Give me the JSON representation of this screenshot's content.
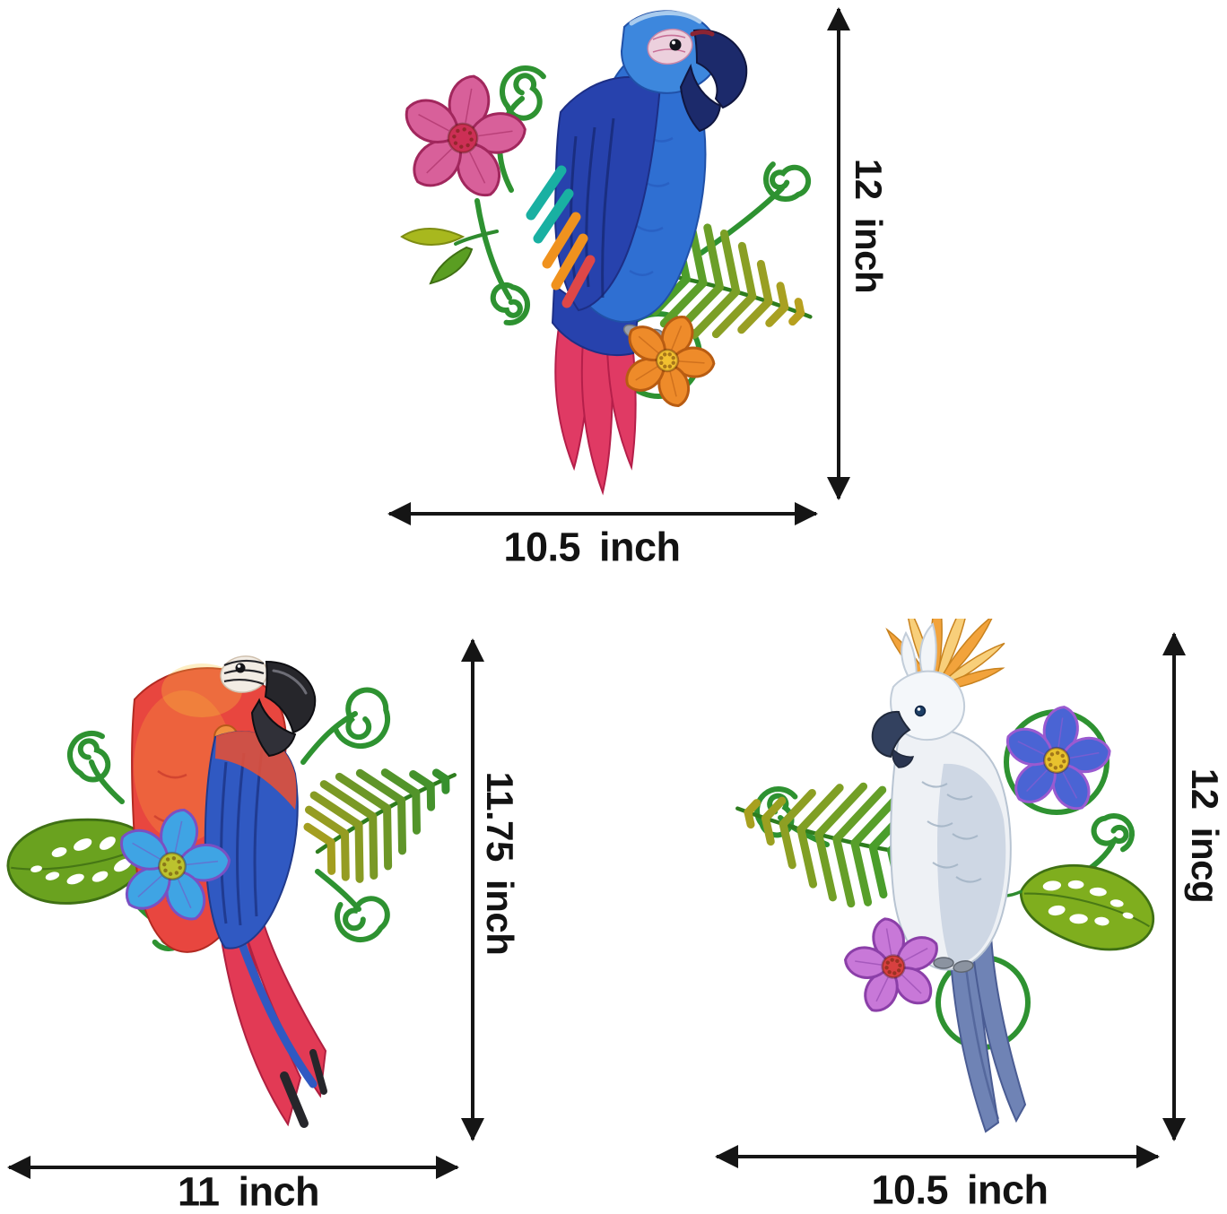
{
  "annotation_color": "#151515",
  "background": "#ffffff",
  "products": [
    {
      "id": "blue-parrot",
      "name": "Blue macaw metal wall art with flowers and fern",
      "height_label": "12 inch",
      "width_label": "10.5 inch",
      "colors": {
        "body": "#2f6fd2",
        "body_dark": "#2742ad",
        "head": "#3d87dd",
        "beak": "#1c2a6b",
        "eye_patch": "#ecd0dd",
        "tail": "#e03a64",
        "accent_teal": "#19b0a2",
        "accent_orange": "#f0921e",
        "accent_red": "#de4748",
        "vine": "#2e9231",
        "fern_base": "#2f9e2f",
        "fern_tip": "#c0a01e",
        "flower_pink": "#d8609a",
        "flower_pink_deep": "#a1275d",
        "flower_pink_center": "#cc2f55",
        "flower_orange": "#ee8b2a",
        "flower_orange_deep": "#b85c12",
        "flower_orange_center": "#f2c030"
      }
    },
    {
      "id": "red-parrot",
      "name": "Red scarlet macaw metal wall art with monstera leaf and blue flower",
      "height_label": "11.75 inch",
      "width_label": "11 inch",
      "colors": {
        "body": "#e8463f",
        "face": "#f2ece4",
        "beak": "#26262b",
        "wing": "#3059c2",
        "wing_dark": "#1f3a8f",
        "tail": "#e23a55",
        "vine": "#2e9231",
        "fern_base": "#b0a01e",
        "fern_tip": "#2f8f2f",
        "monstera": "#6aa21f",
        "flower_blue": "#3fa4e4",
        "flower_blue_edge": "#7a50c2",
        "flower_blue_center": "#bcc22e"
      }
    },
    {
      "id": "white-cockatoo",
      "name": "White cockatoo metal wall art with crest, flowers and leaves",
      "height_label": "12 incg",
      "width_label": "10.5 inch",
      "colors": {
        "body": "#eef1f5",
        "body_shade": "#c3cedd",
        "crest": "#f2a33c",
        "crest_light": "#f8cf7a",
        "beak": "#33415f",
        "tail": "#6f83b5",
        "tail_dark": "#4a5c93",
        "vine": "#2e9231",
        "fern_base": "#2f9e2f",
        "fern_tip": "#b0a01e",
        "monstera": "#7fae1e",
        "flower_violet": "#4a64d4",
        "flower_violet_edge": "#9a5ad0",
        "flower_violet_center": "#e8c22e",
        "flower_pink": "#c878d8",
        "flower_pink_edge": "#8b3fa8",
        "flower_pink_center": "#d84040"
      }
    }
  ]
}
